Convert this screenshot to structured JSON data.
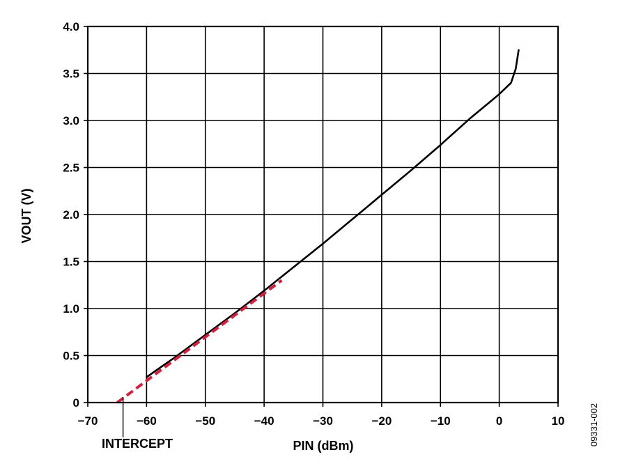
{
  "chart_data": {
    "type": "line",
    "xlabel": "PIN (dBm)",
    "ylabel": "VOUT (V)",
    "xlim": [
      -70,
      10
    ],
    "ylim": [
      0,
      4.0
    ],
    "x_ticks": [
      -70,
      -60,
      -50,
      -40,
      -30,
      -20,
      -10,
      0,
      10
    ],
    "x_tick_labels": [
      "−70",
      "−60",
      "−50",
      "−40",
      "−30",
      "−20",
      "−10",
      "0",
      "10"
    ],
    "y_ticks": [
      0,
      0.5,
      1.0,
      1.5,
      2.0,
      2.5,
      3.0,
      3.5,
      4.0
    ],
    "y_tick_labels": [
      "0",
      "0.5",
      "1.0",
      "1.5",
      "2.0",
      "2.5",
      "3.0",
      "3.5",
      "4.0"
    ],
    "grid": true,
    "series": [
      {
        "style": "solid",
        "color": "#000000",
        "x": [
          -60,
          -55,
          -50,
          -45,
          -40,
          -35,
          -30,
          -25,
          -20,
          -15,
          -10,
          -5,
          0,
          2,
          2.8,
          3.3
        ],
        "y": [
          0.27,
          0.49,
          0.72,
          0.95,
          1.19,
          1.44,
          1.69,
          1.95,
          2.21,
          2.47,
          2.74,
          3.02,
          3.28,
          3.4,
          3.55,
          3.75
        ]
      },
      {
        "style": "dashed",
        "color": "#d81e3c",
        "x": [
          -65,
          -37
        ],
        "y": [
          0.0,
          1.3
        ]
      }
    ],
    "annotations": [
      {
        "text": "INTERCEPT",
        "x": -64
      }
    ],
    "figure_id": "09331-002"
  }
}
